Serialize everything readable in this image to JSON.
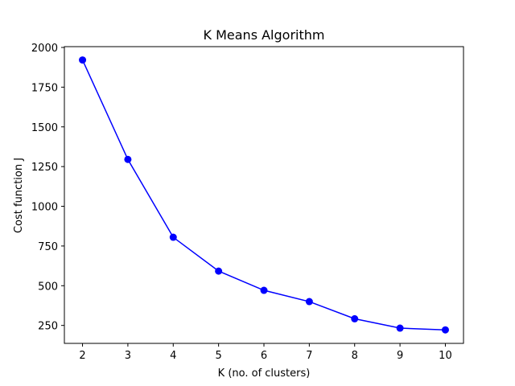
{
  "chart_data": {
    "type": "line",
    "title": "K Means Algorithm",
    "xlabel": "K (no. of clusters)",
    "ylabel": "Cost function J",
    "x": [
      2,
      3,
      4,
      5,
      6,
      7,
      8,
      9,
      10
    ],
    "series": [
      {
        "values": [
          1921,
          1295,
          805,
          592,
          471,
          400,
          292,
          233,
          222
        ],
        "color": "#0000ff",
        "marker": "circle"
      }
    ],
    "xlim": [
      1.6,
      10.4
    ],
    "ylim": [
      137,
      2005
    ],
    "xticks": [
      2,
      3,
      4,
      5,
      6,
      7,
      8,
      9,
      10
    ],
    "yticks": [
      250,
      500,
      750,
      1000,
      1250,
      1500,
      1750,
      2000
    ],
    "grid": false,
    "legend": false
  }
}
